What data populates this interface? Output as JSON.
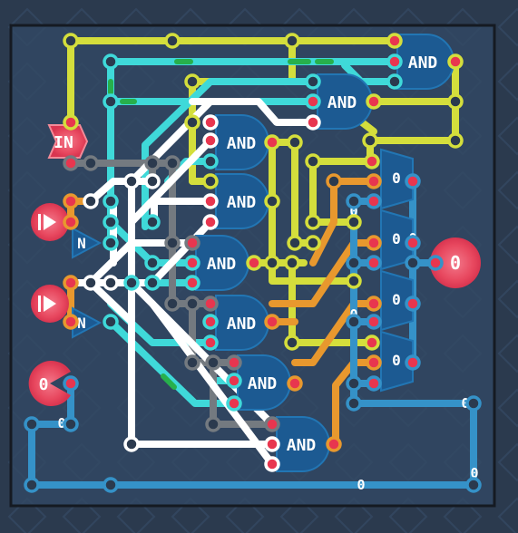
{
  "colors": {
    "page_background": "#2b3a4e",
    "board_background": "#304560",
    "board_border": "#151a22",
    "wire_yellow": "#d4de3c",
    "wire_cyan": "#3fd9d9",
    "wire_white": "#ffffff",
    "wire_gray": "#747a80",
    "wire_orange": "#e8982e",
    "wire_blue": "#3592c8",
    "gate_fill": "#1c5a92",
    "gate_stroke": "#2276b4",
    "pin_red": "#e8364f",
    "pin_red_glow": "#f06a7c",
    "input_red": "#e84a5f",
    "signal_green": "#27b04c"
  },
  "circuit": {
    "input_label": "IN",
    "and_label": "AND",
    "not_label": "N",
    "output_value": "0",
    "left_bottom_value": "0",
    "display_digits": [
      "0",
      "0",
      "0",
      "0"
    ],
    "bus_labels": [
      "0",
      "0",
      "0",
      "0",
      "0",
      "0",
      "0"
    ]
  }
}
